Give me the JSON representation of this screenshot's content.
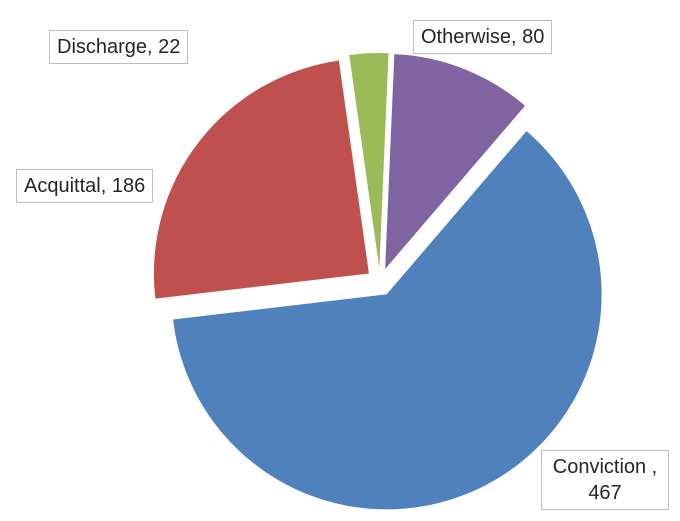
{
  "chart_data": {
    "type": "pie",
    "title": "",
    "slices": [
      {
        "name": "Conviction",
        "value": 467,
        "color": "#4F81BD",
        "label_name": "Conviction ,",
        "label_value": "467"
      },
      {
        "name": "Acquittal",
        "value": 186,
        "color": "#C0504D",
        "label": "Acquittal, 186"
      },
      {
        "name": "Discharge",
        "value": 22,
        "color": "#9BBB59",
        "label": "Discharge, 22"
      },
      {
        "name": "Otherwise",
        "value": 80,
        "color": "#8064A2",
        "label": "Otherwise, 80"
      }
    ],
    "exploded": true,
    "legend": "none"
  }
}
